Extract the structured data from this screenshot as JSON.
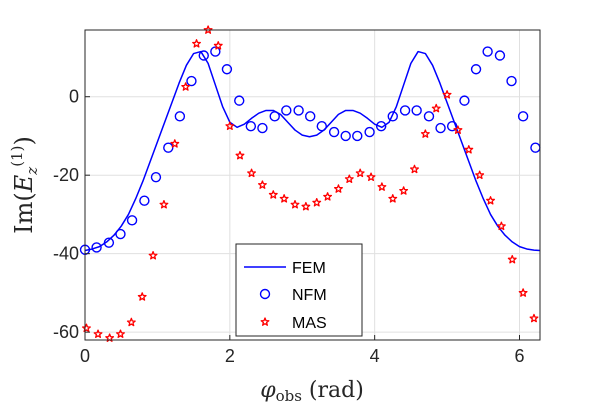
{
  "chart_data": {
    "type": "scatter",
    "xlabel": "φobs (rad)",
    "ylabel": "Im(Ez(1))",
    "xlim": [
      0,
      6.2832
    ],
    "ylim": [
      -62,
      17
    ],
    "xticks": [
      0,
      2,
      4,
      6
    ],
    "yticks": [
      -60,
      -40,
      -20,
      0
    ],
    "xtick_labels": [
      "0",
      "2",
      "4",
      "6"
    ],
    "ytick_labels": [
      "-60",
      "-40",
      "-20",
      "0"
    ],
    "grid": true,
    "legend_position": "bottom-center",
    "series": [
      {
        "name": "FEM",
        "style": "line",
        "color": "#0000ff",
        "x": [
          0,
          0.1,
          0.2,
          0.3,
          0.4,
          0.5,
          0.6,
          0.7,
          0.8,
          0.9,
          1.0,
          1.1,
          1.2,
          1.3,
          1.4,
          1.5,
          1.6,
          1.7,
          1.8,
          1.9,
          2.0,
          2.1,
          2.2,
          2.3,
          2.4,
          2.5,
          2.6,
          2.7,
          2.8,
          2.9,
          3.0,
          3.1,
          3.2,
          3.3,
          3.4,
          3.5,
          3.6,
          3.7,
          3.8,
          3.9,
          4.0,
          4.1,
          4.2,
          4.3,
          4.4,
          4.5,
          4.6,
          4.7,
          4.8,
          4.9,
          5.0,
          5.1,
          5.2,
          5.3,
          5.4,
          5.5,
          5.6,
          5.7,
          5.8,
          5.9,
          6.0,
          6.1,
          6.2,
          6.2832
        ],
        "y": [
          -39.2,
          -38.8,
          -38.2,
          -37.0,
          -35.3,
          -33.0,
          -30.0,
          -26.0,
          -21.5,
          -16.5,
          -11.5,
          -6.5,
          -1.5,
          3.5,
          8.0,
          11.0,
          11.5,
          8.5,
          3.0,
          -2.5,
          -6.5,
          -7.8,
          -7.0,
          -5.5,
          -4.2,
          -3.5,
          -3.5,
          -4.5,
          -6.5,
          -8.5,
          -9.8,
          -10.2,
          -9.8,
          -8.5,
          -6.5,
          -4.5,
          -3.5,
          -3.5,
          -4.2,
          -5.5,
          -7.0,
          -7.8,
          -6.5,
          -2.5,
          3.0,
          8.5,
          11.5,
          11.0,
          8.0,
          3.5,
          -1.5,
          -6.5,
          -11.5,
          -16.5,
          -21.5,
          -26.0,
          -30.0,
          -33.0,
          -35.3,
          -37.0,
          -38.2,
          -38.8,
          -39.1,
          -39.2
        ]
      },
      {
        "name": "NFM",
        "style": "circle",
        "color": "#0000ff",
        "x": [
          0,
          0.16,
          0.33,
          0.49,
          0.65,
          0.82,
          0.98,
          1.15,
          1.31,
          1.47,
          1.64,
          1.8,
          1.96,
          2.13,
          2.29,
          2.45,
          2.62,
          2.78,
          2.95,
          3.11,
          3.27,
          3.44,
          3.6,
          3.76,
          3.93,
          4.09,
          4.25,
          4.42,
          4.58,
          4.75,
          4.91,
          5.07,
          5.24,
          5.4,
          5.56,
          5.73,
          5.89,
          6.05,
          6.22
        ],
        "y": [
          -39.0,
          -38.4,
          -37.2,
          -35.0,
          -31.5,
          -26.5,
          -20.5,
          -13.0,
          -5.0,
          4.0,
          10.5,
          11.5,
          7.0,
          -1.0,
          -7.5,
          -8.0,
          -5.0,
          -3.5,
          -3.5,
          -5.0,
          -7.5,
          -9.0,
          -10.0,
          -10.0,
          -9.0,
          -7.5,
          -5.0,
          -3.5,
          -3.5,
          -5.0,
          -8.0,
          -7.5,
          -1.0,
          7.0,
          11.5,
          10.5,
          4.0,
          -5.0,
          -13.0
        ]
      },
      {
        "name": "MAS",
        "style": "star",
        "color": "#ff0000",
        "x": [
          0.02,
          0.18,
          0.34,
          0.49,
          0.64,
          0.79,
          0.94,
          1.09,
          1.24,
          1.39,
          1.54,
          1.7,
          1.84,
          2.0,
          2.14,
          2.3,
          2.45,
          2.6,
          2.75,
          2.9,
          3.05,
          3.2,
          3.35,
          3.5,
          3.65,
          3.8,
          3.95,
          4.1,
          4.25,
          4.4,
          4.55,
          4.7,
          4.85,
          5.0,
          5.15,
          5.3,
          5.45,
          5.6,
          5.75,
          5.9,
          6.05,
          6.2
        ],
        "y": [
          -59.0,
          -60.5,
          -61.5,
          -60.5,
          -57.5,
          -51.0,
          -40.5,
          -27.5,
          -12.0,
          2.5,
          13.5,
          17.0,
          13.0,
          -7.5,
          -15.0,
          -19.5,
          -22.5,
          -25.0,
          -26.0,
          -27.5,
          -28.0,
          -27.0,
          -25.5,
          -23.5,
          -21.0,
          -19.5,
          -20.5,
          -23.0,
          -26.0,
          -24.0,
          -18.5,
          -9.5,
          -3.0,
          0.5,
          -8.5,
          -13.5,
          -20.0,
          -26.5,
          -33.0,
          -41.5,
          -50.0,
          -56.5
        ]
      }
    ]
  }
}
